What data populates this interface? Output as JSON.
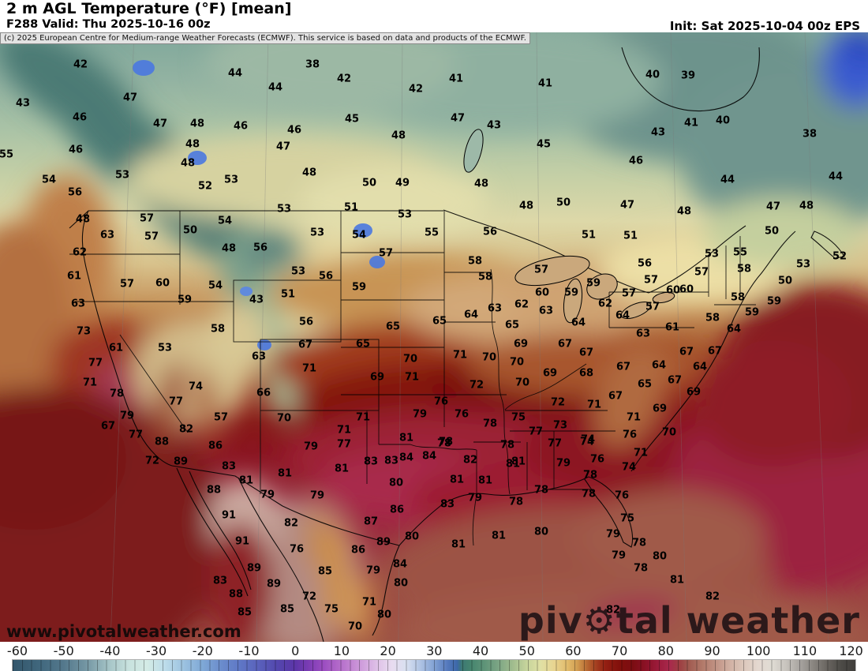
{
  "header": {
    "title": "2 m AGL Temperature (°F) [mean]",
    "subtitle": "F288 Valid: Thu 2025-10-16 00z",
    "init": "Init: Sat 2025-10-04 00z EPS"
  },
  "copyright": "(c) 2025 European Centre for Medium-range Weather Forecasts (ECMWF). This service is based on data and products of the ECMWF.",
  "watermark": "www.pivotalweather.com",
  "logo": {
    "part1": "piv",
    "gear": "⚙",
    "part2": "tal weather"
  },
  "colorbar": {
    "units": "°F",
    "ticks": [
      -60,
      -50,
      -40,
      -30,
      -20,
      -10,
      0,
      10,
      20,
      30,
      40,
      50,
      60,
      70,
      80,
      90,
      100,
      110,
      120
    ],
    "stops": [
      [
        -61,
        "#33566b"
      ],
      [
        -55,
        "#41687e"
      ],
      [
        -50,
        "#54788c"
      ],
      [
        -45,
        "#7597a4"
      ],
      [
        -40,
        "#a7c6c8"
      ],
      [
        -36,
        "#c8e2de"
      ],
      [
        -32,
        "#d4ebe6"
      ],
      [
        -28,
        "#bcdcea"
      ],
      [
        -24,
        "#9cc2e0"
      ],
      [
        -20,
        "#7fa8d6"
      ],
      [
        -16,
        "#6b8ccc"
      ],
      [
        -12,
        "#5f78c6"
      ],
      [
        -8,
        "#5a62bc"
      ],
      [
        -4,
        "#5348ae"
      ],
      [
        0,
        "#5c35a8"
      ],
      [
        3,
        "#7c3cb4"
      ],
      [
        6,
        "#9a4cc0"
      ],
      [
        9,
        "#b066c8"
      ],
      [
        12,
        "#c284d2"
      ],
      [
        15,
        "#d2a4de"
      ],
      [
        18,
        "#e0c4e8"
      ],
      [
        21,
        "#e8dcf0"
      ],
      [
        24,
        "#d8e0f0"
      ],
      [
        27,
        "#b0c4e4"
      ],
      [
        30,
        "#82a2d4"
      ],
      [
        33,
        "#5478bc"
      ],
      [
        35,
        "#3c68a8"
      ],
      [
        36,
        "#3c7873"
      ],
      [
        38,
        "#46856f"
      ],
      [
        41,
        "#5f9478"
      ],
      [
        44,
        "#7da685"
      ],
      [
        47,
        "#a0bc8e"
      ],
      [
        50,
        "#c6d49c"
      ],
      [
        53,
        "#e0e0a4"
      ],
      [
        56,
        "#e8d490"
      ],
      [
        59,
        "#e0b968"
      ],
      [
        61,
        "#d19c50"
      ],
      [
        63,
        "#b96a33"
      ],
      [
        65,
        "#a33f20"
      ],
      [
        67,
        "#941f12"
      ],
      [
        70,
        "#82100c"
      ],
      [
        73,
        "#7c0d12"
      ],
      [
        76,
        "#8c1228"
      ],
      [
        79,
        "#a01e40"
      ],
      [
        81,
        "#a82a4c"
      ],
      [
        83,
        "#9e3e42"
      ],
      [
        85,
        "#a05a50"
      ],
      [
        88,
        "#b27a6a"
      ],
      [
        91,
        "#c29486"
      ],
      [
        94,
        "#d2b2a4"
      ],
      [
        97,
        "#dcc8bc"
      ],
      [
        100,
        "#e4d8d0"
      ],
      [
        103,
        "#e0dcd4"
      ],
      [
        106,
        "#c8c4be"
      ],
      [
        109,
        "#a8a4a0"
      ],
      [
        112,
        "#88847f"
      ],
      [
        115,
        "#68645f"
      ],
      [
        118,
        "#4c4a46"
      ],
      [
        121,
        "#403e3b"
      ]
    ]
  },
  "map": {
    "units": "°F",
    "stations": [
      [
        42,
        102,
        82
      ],
      [
        38,
        396,
        82
      ],
      [
        44,
        298,
        93
      ],
      [
        40,
        827,
        95
      ],
      [
        39,
        872,
        96
      ],
      [
        42,
        436,
        100
      ],
      [
        41,
        578,
        100
      ],
      [
        41,
        691,
        106
      ],
      [
        44,
        349,
        111
      ],
      [
        42,
        527,
        113
      ],
      [
        47,
        165,
        124
      ],
      [
        43,
        29,
        131
      ],
      [
        46,
        101,
        149
      ],
      [
        47,
        580,
        150
      ],
      [
        45,
        446,
        151
      ],
      [
        40,
        916,
        153
      ],
      [
        41,
        876,
        156
      ],
      [
        47,
        203,
        157
      ],
      [
        48,
        250,
        157
      ],
      [
        43,
        626,
        159
      ],
      [
        46,
        305,
        160
      ],
      [
        46,
        373,
        165
      ],
      [
        43,
        834,
        168
      ],
      [
        38,
        1026,
        170
      ],
      [
        48,
        505,
        172
      ],
      [
        45,
        689,
        183
      ],
      [
        48,
        244,
        183
      ],
      [
        47,
        359,
        186
      ],
      [
        46,
        96,
        190
      ],
      [
        55,
        8,
        196
      ],
      [
        46,
        806,
        204
      ],
      [
        48,
        238,
        207
      ],
      [
        48,
        392,
        219
      ],
      [
        53,
        155,
        222
      ],
      [
        44,
        1059,
        224
      ],
      [
        44,
        922,
        228
      ],
      [
        54,
        62,
        228
      ],
      [
        53,
        293,
        228
      ],
      [
        50,
        468,
        232
      ],
      [
        49,
        510,
        232
      ],
      [
        48,
        610,
        233
      ],
      [
        52,
        260,
        236
      ],
      [
        56,
        95,
        244
      ],
      [
        50,
        714,
        257
      ],
      [
        47,
        795,
        260
      ],
      [
        48,
        667,
        261
      ],
      [
        48,
        1022,
        261
      ],
      [
        47,
        980,
        262
      ],
      [
        51,
        445,
        263
      ],
      [
        53,
        360,
        265
      ],
      [
        48,
        867,
        268
      ],
      [
        53,
        513,
        272
      ],
      [
        57,
        186,
        277
      ],
      [
        48,
        105,
        278
      ],
      [
        54,
        285,
        280
      ],
      [
        50,
        241,
        292
      ],
      [
        50,
        978,
        293
      ],
      [
        56,
        621,
        294
      ],
      [
        53,
        402,
        295
      ],
      [
        55,
        547,
        295
      ],
      [
        63,
        136,
        298
      ],
      [
        51,
        746,
        298
      ],
      [
        54,
        455,
        298
      ],
      [
        51,
        799,
        299
      ],
      [
        57,
        192,
        300
      ],
      [
        56,
        330,
        314
      ],
      [
        48,
        290,
        315
      ],
      [
        62,
        101,
        320
      ],
      [
        55,
        938,
        320
      ],
      [
        57,
        489,
        321
      ],
      [
        53,
        902,
        322
      ],
      [
        52,
        1064,
        325
      ],
      [
        58,
        602,
        331
      ],
      [
        56,
        817,
        334
      ],
      [
        53,
        1018,
        335
      ],
      [
        58,
        943,
        341
      ],
      [
        57,
        686,
        342
      ],
      [
        53,
        378,
        344
      ],
      [
        57,
        889,
        345
      ],
      [
        61,
        94,
        350
      ],
      [
        56,
        413,
        350
      ],
      [
        58,
        615,
        351
      ],
      [
        57,
        825,
        355
      ],
      [
        50,
        995,
        356
      ],
      [
        60,
        206,
        359
      ],
      [
        59,
        752,
        359
      ],
      [
        57,
        161,
        360
      ],
      [
        54,
        273,
        362
      ],
      [
        59,
        455,
        364
      ],
      [
        60,
        870,
        367
      ],
      [
        60,
        853,
        368
      ],
      [
        60,
        687,
        371
      ],
      [
        59,
        724,
        371
      ],
      [
        57,
        797,
        372
      ],
      [
        51,
        365,
        373
      ],
      [
        58,
        935,
        377
      ],
      [
        43,
        325,
        380
      ],
      [
        59,
        234,
        380
      ],
      [
        59,
        981,
        382
      ],
      [
        63,
        99,
        385
      ],
      [
        62,
        767,
        385
      ],
      [
        62,
        661,
        386
      ],
      [
        57,
        827,
        389
      ],
      [
        63,
        627,
        391
      ],
      [
        63,
        692,
        394
      ],
      [
        59,
        953,
        396
      ],
      [
        64,
        597,
        399
      ],
      [
        64,
        789,
        400
      ],
      [
        58,
        903,
        403
      ],
      [
        65,
        557,
        407
      ],
      [
        56,
        388,
        408
      ],
      [
        64,
        733,
        409
      ],
      [
        65,
        649,
        412
      ],
      [
        65,
        498,
        414
      ],
      [
        61,
        852,
        415
      ],
      [
        58,
        276,
        417
      ],
      [
        64,
        930,
        417
      ],
      [
        73,
        106,
        420
      ],
      [
        63,
        815,
        423
      ],
      [
        65,
        460,
        436
      ],
      [
        69,
        660,
        436
      ],
      [
        67,
        716,
        436
      ],
      [
        67,
        387,
        437
      ],
      [
        61,
        147,
        441
      ],
      [
        53,
        209,
        441
      ],
      [
        67,
        906,
        445
      ],
      [
        67,
        870,
        446
      ],
      [
        67,
        743,
        447
      ],
      [
        71,
        583,
        450
      ],
      [
        63,
        328,
        452
      ],
      [
        70,
        620,
        453
      ],
      [
        70,
        520,
        455
      ],
      [
        70,
        655,
        459
      ],
      [
        77,
        121,
        460
      ],
      [
        64,
        835,
        463
      ],
      [
        64,
        887,
        465
      ],
      [
        67,
        790,
        465
      ],
      [
        71,
        392,
        467
      ],
      [
        69,
        697,
        473
      ],
      [
        68,
        743,
        473
      ],
      [
        69,
        478,
        478
      ],
      [
        71,
        522,
        478
      ],
      [
        67,
        855,
        482
      ],
      [
        71,
        114,
        485
      ],
      [
        70,
        662,
        485
      ],
      [
        65,
        817,
        487
      ],
      [
        72,
        604,
        488
      ],
      [
        74,
        248,
        490
      ],
      [
        69,
        879,
        497
      ],
      [
        66,
        334,
        498
      ],
      [
        78,
        148,
        499
      ],
      [
        67,
        780,
        502
      ],
      [
        77,
        223,
        509
      ],
      [
        76,
        559,
        509
      ],
      [
        72,
        707,
        510
      ],
      [
        71,
        753,
        513
      ],
      [
        69,
        836,
        518
      ],
      [
        79,
        532,
        525
      ],
      [
        76,
        585,
        525
      ],
      [
        79,
        161,
        527
      ],
      [
        57,
        280,
        529
      ],
      [
        71,
        803,
        529
      ],
      [
        75,
        657,
        529
      ],
      [
        71,
        460,
        529
      ],
      [
        70,
        360,
        530
      ],
      [
        78,
        621,
        537
      ],
      [
        73,
        710,
        539
      ],
      [
        67,
        137,
        540
      ],
      [
        82,
        236,
        544
      ],
      [
        71,
        436,
        545
      ],
      [
        77,
        679,
        547
      ],
      [
        70,
        848,
        548
      ],
      [
        77,
        172,
        551
      ],
      [
        76,
        798,
        551
      ],
      [
        81,
        515,
        555
      ],
      [
        74,
        745,
        557
      ],
      [
        88,
        205,
        560
      ],
      [
        78,
        565,
        560
      ],
      [
        74,
        744,
        560
      ],
      [
        78,
        563,
        562
      ],
      [
        77,
        436,
        563
      ],
      [
        77,
        703,
        562
      ],
      [
        78,
        643,
        564
      ],
      [
        86,
        273,
        565
      ],
      [
        79,
        394,
        566
      ],
      [
        71,
        812,
        574
      ],
      [
        84,
        544,
        578
      ],
      [
        84,
        515,
        580
      ],
      [
        76,
        757,
        582
      ],
      [
        82,
        596,
        583
      ],
      [
        83,
        496,
        584
      ],
      [
        72,
        193,
        584
      ],
      [
        89,
        229,
        585
      ],
      [
        83,
        470,
        585
      ],
      [
        81,
        657,
        585
      ],
      [
        79,
        714,
        587
      ],
      [
        81,
        650,
        588
      ],
      [
        83,
        290,
        591
      ],
      [
        74,
        797,
        592
      ],
      [
        81,
        433,
        594
      ],
      [
        81,
        361,
        600
      ],
      [
        78,
        748,
        602
      ],
      [
        81,
        579,
        608
      ],
      [
        81,
        615,
        609
      ],
      [
        81,
        312,
        609
      ],
      [
        80,
        502,
        612
      ],
      [
        88,
        271,
        621
      ],
      [
        78,
        686,
        621
      ],
      [
        78,
        746,
        626
      ],
      [
        79,
        339,
        627
      ],
      [
        79,
        402,
        628
      ],
      [
        76,
        788,
        628
      ],
      [
        79,
        602,
        631
      ],
      [
        78,
        654,
        636
      ],
      [
        83,
        567,
        639
      ],
      [
        86,
        503,
        646
      ],
      [
        91,
        290,
        653
      ],
      [
        75,
        795,
        657
      ],
      [
        87,
        470,
        661
      ],
      [
        82,
        369,
        663
      ],
      [
        80,
        686,
        674
      ],
      [
        79,
        777,
        677
      ],
      [
        81,
        632,
        679
      ],
      [
        80,
        522,
        680
      ],
      [
        91,
        307,
        686
      ],
      [
        89,
        486,
        687
      ],
      [
        78,
        810,
        688
      ],
      [
        81,
        581,
        690
      ],
      [
        76,
        376,
        696
      ],
      [
        86,
        454,
        697
      ],
      [
        79,
        784,
        704
      ],
      [
        80,
        836,
        705
      ],
      [
        84,
        507,
        715
      ],
      [
        89,
        322,
        720
      ],
      [
        78,
        812,
        720
      ],
      [
        79,
        473,
        723
      ],
      [
        85,
        412,
        724
      ],
      [
        81,
        858,
        735
      ],
      [
        83,
        279,
        736
      ],
      [
        80,
        508,
        739
      ],
      [
        89,
        347,
        740
      ],
      [
        88,
        299,
        753
      ],
      [
        72,
        392,
        756
      ],
      [
        82,
        903,
        756
      ],
      [
        71,
        468,
        763
      ],
      [
        85,
        364,
        772
      ],
      [
        75,
        420,
        772
      ],
      [
        82,
        777,
        773
      ],
      [
        85,
        310,
        776
      ],
      [
        80,
        487,
        779
      ],
      [
        70,
        450,
        794
      ]
    ]
  }
}
